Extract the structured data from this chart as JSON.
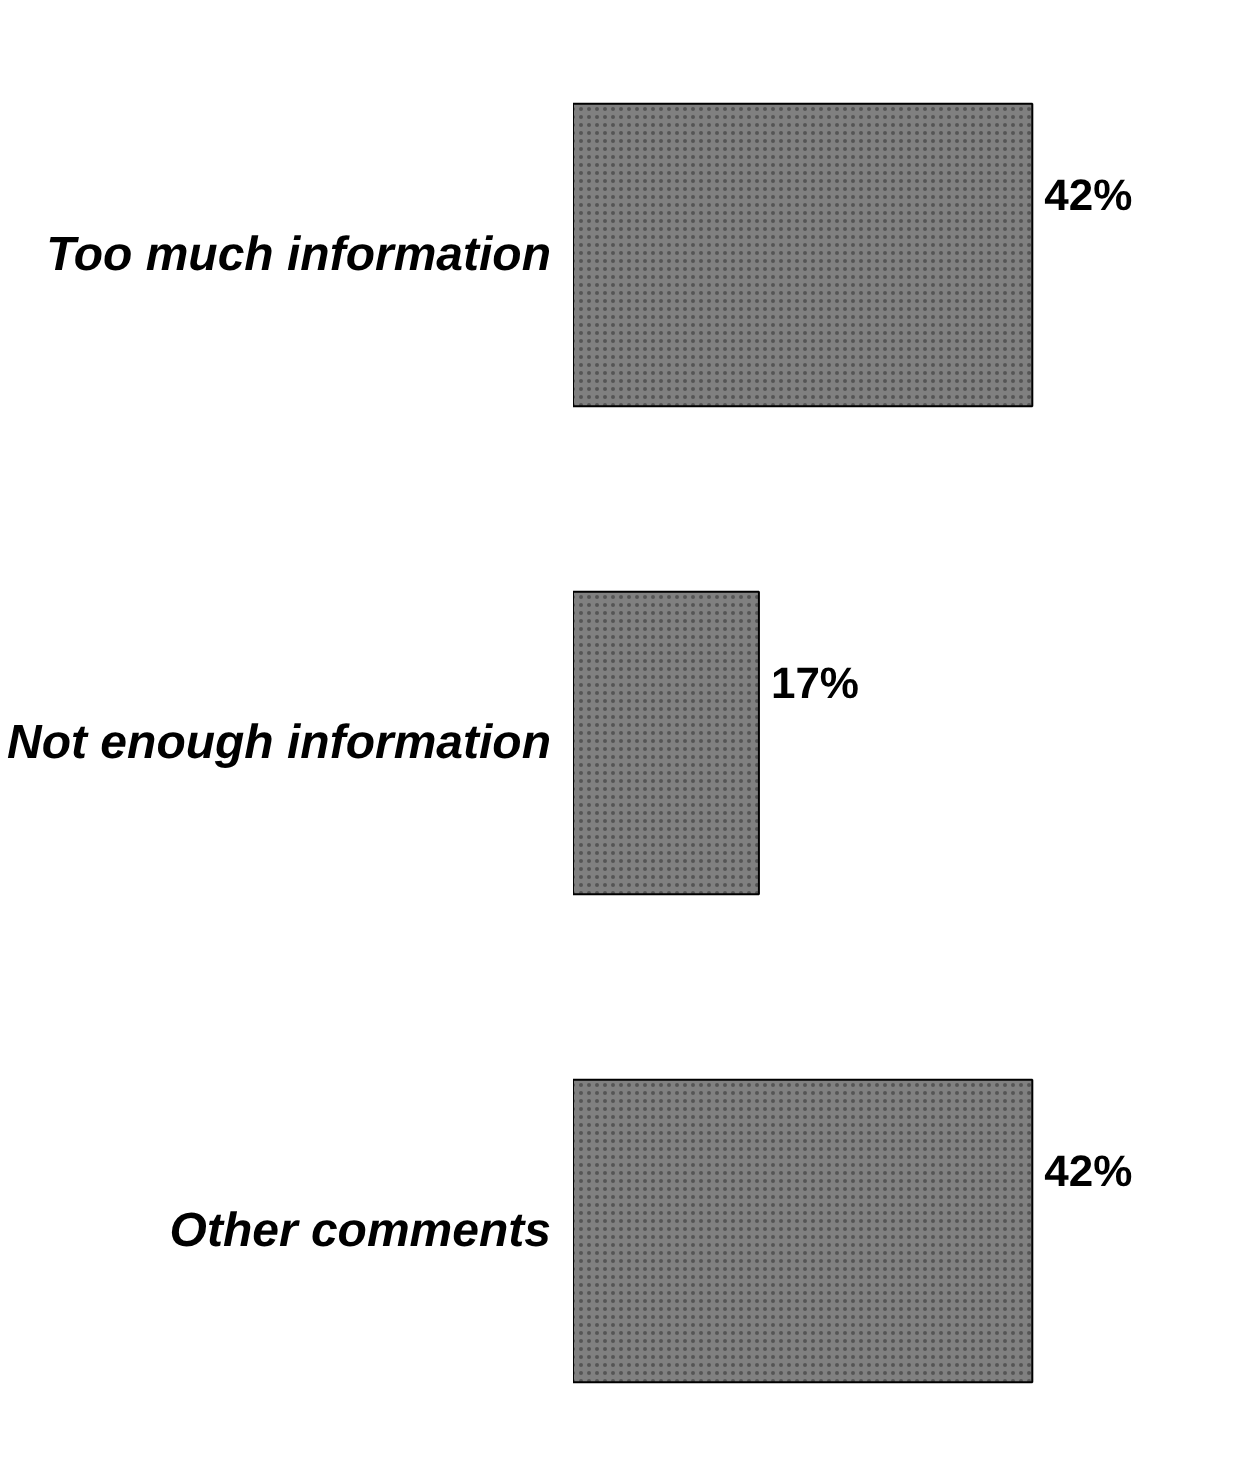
{
  "chart_data": {
    "type": "bar",
    "orientation": "horizontal",
    "categories": [
      "Too much information",
      "Not enough information",
      "Other comments"
    ],
    "values": [
      42,
      17,
      42
    ],
    "color": "#808080",
    "value_labels": [
      "42%",
      "17%",
      "42%"
    ],
    "grid": false
  }
}
